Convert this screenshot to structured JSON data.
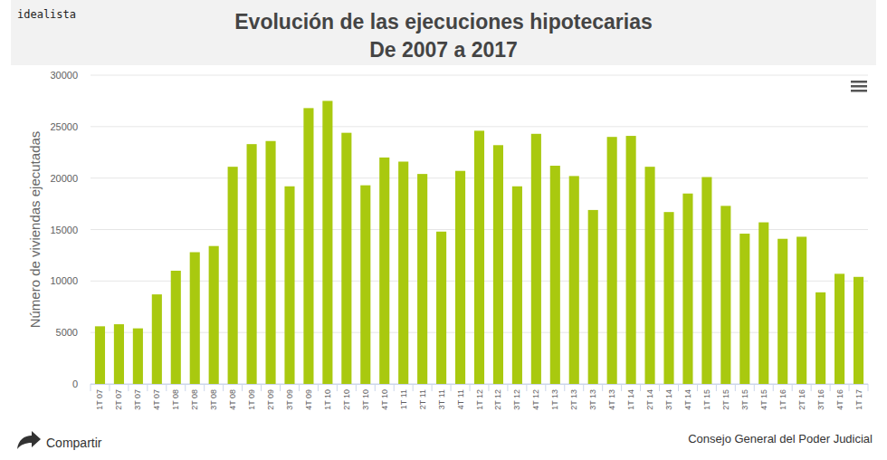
{
  "chart_data": {
    "type": "bar",
    "brand": "idealista",
    "title": "Evolución de las ejecuciones hipotecarias",
    "subtitle": "De 2007 a 2017",
    "y_label": "Número de viviendas ejecutadas",
    "share": "Compartir",
    "source": "Consejo General del Poder Judicial",
    "categories": [
      "1T 07",
      "2T 07",
      "3T 07",
      "4T 07",
      "1T 08",
      "2T 08",
      "3T 08",
      "4T 08",
      "1T 09",
      "2T 09",
      "3T 09",
      "4T 09",
      "1T 10",
      "2T 10",
      "3T 10",
      "4T 10",
      "1T 11",
      "2T 11",
      "3T 11",
      "4T 11",
      "1T 12",
      "2T 12",
      "3T 12",
      "4T 12",
      "1T 13",
      "2T 13",
      "3T 13",
      "4T 13",
      "1T 14",
      "2T 14",
      "3T 14",
      "4T 14",
      "1T 15",
      "2T 15",
      "3T 15",
      "4T 15",
      "1T 16",
      "2T 16",
      "3T 16",
      "4T 16",
      "1T 17"
    ],
    "values": [
      5600,
      5800,
      5400,
      8700,
      11000,
      12800,
      13400,
      21100,
      23300,
      23600,
      19200,
      26800,
      27500,
      24400,
      19300,
      22000,
      21600,
      20400,
      14800,
      20700,
      24600,
      23200,
      19200,
      24300,
      21200,
      20200,
      16900,
      24000,
      24100,
      21100,
      16700,
      18500,
      20100,
      17300,
      14600,
      15700,
      14100,
      14300,
      8900,
      10700,
      10400
    ],
    "color": "#a9c90f",
    "ylim": [
      0,
      30000
    ],
    "yticks": [
      0,
      5000,
      10000,
      15000,
      20000,
      25000,
      30000
    ],
    "grid": true
  }
}
